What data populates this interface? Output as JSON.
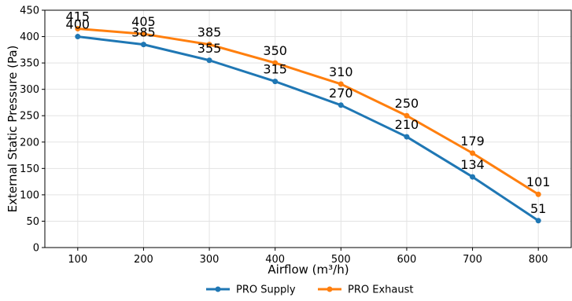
{
  "chart_data": {
    "type": "line",
    "xlabel": "Airflow (m³/h)",
    "ylabel": "External Static Pressure (Pa)",
    "x": [
      100,
      200,
      300,
      400,
      500,
      600,
      700,
      800
    ],
    "xlim": [
      50,
      850
    ],
    "ylim": [
      0,
      450
    ],
    "y_ticks": [
      0,
      50,
      100,
      150,
      200,
      250,
      300,
      350,
      400,
      450
    ],
    "grid": true,
    "legend_position": "bottom-center",
    "series": [
      {
        "name": "PRO Supply",
        "color": "#1f77b4",
        "values": [
          400,
          385,
          355,
          315,
          270,
          210,
          134,
          51
        ]
      },
      {
        "name": "PRO Exhaust",
        "color": "#ff7f0e",
        "values": [
          415,
          405,
          385,
          350,
          310,
          250,
          179,
          101
        ]
      }
    ]
  }
}
